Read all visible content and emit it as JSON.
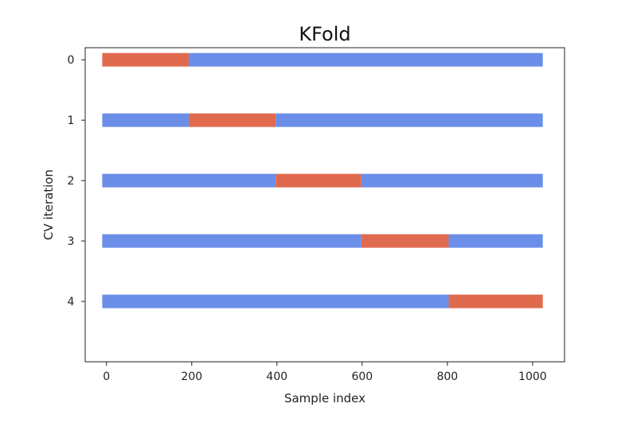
{
  "chart_data": {
    "type": "bar",
    "title": "KFold",
    "xlabel": "Sample index",
    "ylabel": "CV iteration",
    "xlim": [
      -50,
      1075
    ],
    "ylim": [
      5,
      -0.2
    ],
    "xticks": [
      "0",
      "200",
      "400",
      "600",
      "800",
      "1000"
    ],
    "xtick_values": [
      0,
      200,
      400,
      600,
      800,
      1000
    ],
    "yticks": [
      "0",
      "1",
      "2",
      "3",
      "4"
    ],
    "ytick_values": [
      0,
      1,
      2,
      3,
      4
    ],
    "grid": false,
    "colors": {
      "train": "#6b8fe8",
      "test": "#e06a4e"
    },
    "iterations": [
      {
        "index": 0,
        "segments": [
          {
            "start": -10,
            "end": 193,
            "kind": "test"
          },
          {
            "start": 193,
            "end": 1024,
            "kind": "train"
          }
        ]
      },
      {
        "index": 1,
        "segments": [
          {
            "start": -10,
            "end": 193,
            "kind": "train"
          },
          {
            "start": 193,
            "end": 397,
            "kind": "test"
          },
          {
            "start": 397,
            "end": 1024,
            "kind": "train"
          }
        ]
      },
      {
        "index": 2,
        "segments": [
          {
            "start": -10,
            "end": 397,
            "kind": "train"
          },
          {
            "start": 397,
            "end": 598,
            "kind": "test"
          },
          {
            "start": 598,
            "end": 1024,
            "kind": "train"
          }
        ]
      },
      {
        "index": 3,
        "segments": [
          {
            "start": -10,
            "end": 598,
            "kind": "train"
          },
          {
            "start": 598,
            "end": 803,
            "kind": "test"
          },
          {
            "start": 803,
            "end": 1024,
            "kind": "train"
          }
        ]
      },
      {
        "index": 4,
        "segments": [
          {
            "start": -10,
            "end": 803,
            "kind": "train"
          },
          {
            "start": 803,
            "end": 1024,
            "kind": "test"
          }
        ]
      }
    ]
  }
}
